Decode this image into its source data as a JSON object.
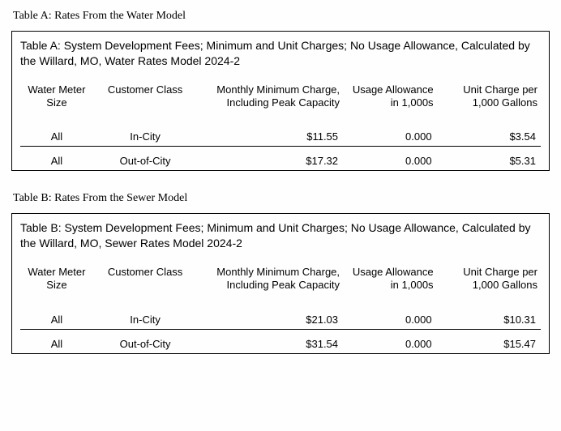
{
  "tableA": {
    "section_title": "Table A: Rates From the Water Model",
    "caption": "Table A: System Development Fees; Minimum and Unit Charges; No Usage Allowance, Calculated by the Willard, MO, Water Rates Model 2024-2",
    "columns": {
      "meter": "Water Meter Size",
      "class": "Customer Class",
      "min": "Monthly Minimum Charge, Including Peak Capacity",
      "allow": "Usage Allowance in 1,000s",
      "unit": "Unit Charge per 1,000 Gallons"
    },
    "rows": [
      {
        "meter": "All",
        "class": "In-City",
        "min": "$11.55",
        "allow": "0.000",
        "unit": "$3.54"
      },
      {
        "meter": "All",
        "class": "Out-of-City",
        "min": "$17.32",
        "allow": "0.000",
        "unit": "$5.31"
      }
    ]
  },
  "tableB": {
    "section_title": "Table B: Rates From the Sewer Model",
    "caption": "Table B: System Development Fees; Minimum and Unit Charges; No Usage Allowance, Calculated by the Willard, MO, Sewer Rates Model 2024-2",
    "columns": {
      "meter": "Water Meter Size",
      "class": "Customer Class",
      "min": "Monthly Minimum Charge, Including Peak Capacity",
      "allow": "Usage Allowance in 1,000s",
      "unit": "Unit Charge per 1,000 Gallons"
    },
    "rows": [
      {
        "meter": "All",
        "class": "In-City",
        "min": "$21.03",
        "allow": "0.000",
        "unit": "$10.31"
      },
      {
        "meter": "All",
        "class": "Out-of-City",
        "min": "$31.54",
        "allow": "0.000",
        "unit": "$15.47"
      }
    ]
  }
}
